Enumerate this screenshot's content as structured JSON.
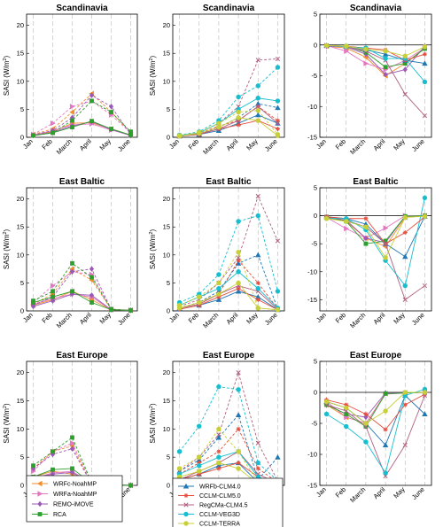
{
  "figure": {
    "months": [
      "Jan",
      "Feb",
      "March",
      "April",
      "May",
      "June"
    ],
    "y_label": "SASI (W/m",
    "y_label_sup": "2",
    "y_label_close": ")"
  },
  "legend_left": [
    {
      "name": "WRFc-NoahMP",
      "color": "#f28e2b",
      "marker": "triangle-left"
    },
    {
      "name": "WRFa-NoahMP",
      "color": "#e377c2",
      "marker": "triangle-right"
    },
    {
      "name": "REMO-iMOVE",
      "color": "#9b59b6",
      "marker": "diamond"
    },
    {
      "name": "RCA",
      "color": "#2ca02c",
      "marker": "square"
    }
  ],
  "legend_right": [
    {
      "name": "WRFb-CLM4.0",
      "color": "#1f77b4",
      "marker": "triangle-up"
    },
    {
      "name": "CCLM-CLM5.0",
      "color": "#e74c3c",
      "marker": "asterisk"
    },
    {
      "name": "RegCMa-CLM4.5",
      "color": "#b06080",
      "marker": "x"
    },
    {
      "name": "CCLM-VEG3D",
      "color": "#17becf",
      "marker": "circle"
    },
    {
      "name": "CCLM-TERRA",
      "color": "#c8d038",
      "marker": "circle"
    }
  ],
  "chart_data": [
    {
      "type": "line",
      "title": "Scandinavia",
      "ylabel": "SASI (W/m2)",
      "ylim": [
        0,
        22
      ],
      "yticks": [
        0,
        5,
        10,
        15,
        20
      ],
      "series": [
        {
          "name": "WRFc-NoahMP",
          "values": [
            0.5,
            1.5,
            4.5,
            7.8,
            4.5,
            0.8
          ],
          "dashed": [
            0.4,
            1.0,
            2.5,
            2.6,
            1.5,
            0.4
          ]
        },
        {
          "name": "WRFa-NoahMP",
          "values": [
            0.5,
            2.5,
            5.5,
            6.5,
            4.0,
            0.8
          ],
          "dashed": [
            0.4,
            1.2,
            2.2,
            2.4,
            1.3,
            0.4
          ]
        },
        {
          "name": "REMO-iMOVE",
          "values": [
            0.4,
            1.2,
            3.5,
            7.5,
            5.5,
            0.5
          ],
          "dashed": [
            0.3,
            0.9,
            2.0,
            2.8,
            1.4,
            0.3
          ]
        },
        {
          "name": "RCA",
          "values": [
            0.3,
            0.8,
            3.0,
            6.5,
            4.5,
            1.0
          ],
          "dashed": [
            0.3,
            0.8,
            1.8,
            2.9,
            1.5,
            0.4
          ]
        }
      ]
    },
    {
      "type": "line",
      "title": "Scandinavia",
      "ylabel": "SASI (W/m2)",
      "ylim": [
        0,
        22
      ],
      "yticks": [
        0,
        5,
        10,
        15,
        20
      ],
      "series": [
        {
          "name": "WRFb-CLM4.0",
          "values": [
            0.3,
            0.6,
            1.8,
            3.5,
            6.0,
            5.3
          ],
          "dashed": [
            0.2,
            0.5,
            1.2,
            2.5,
            4.0,
            2.5
          ]
        },
        {
          "name": "CCLM-CLM5.0",
          "values": [
            0.3,
            0.7,
            2.0,
            3.0,
            5.5,
            3.0
          ],
          "dashed": [
            0.2,
            0.5,
            1.5,
            2.2,
            3.0,
            1.5
          ]
        },
        {
          "name": "RegCMa-CLM4.5",
          "values": [
            0.3,
            0.8,
            2.5,
            5.5,
            13.8,
            14.0
          ],
          "dashed": [
            0.2,
            0.6,
            1.5,
            3.0,
            5.5,
            2.5
          ]
        },
        {
          "name": "CCLM-VEG3D",
          "values": [
            0.4,
            1.0,
            3.0,
            7.2,
            9.2,
            12.5
          ],
          "dashed": [
            0.3,
            0.8,
            2.5,
            5.0,
            7.0,
            6.5
          ]
        },
        {
          "name": "CCLM-TERRA",
          "values": [
            0.3,
            0.9,
            2.5,
            4.5,
            4.8,
            0.5
          ],
          "dashed": [
            0.2,
            0.7,
            1.8,
            3.5,
            3.0,
            0.3
          ]
        }
      ]
    },
    {
      "type": "line",
      "title": "Scandinavia",
      "ylim": [
        -15,
        5
      ],
      "yticks": [
        -15,
        -10,
        -5,
        0,
        5
      ],
      "series": [
        {
          "name": "WRFc-NoahMP",
          "values": [
            -0.2,
            -0.5,
            -2.0,
            -5.0,
            -3.0,
            -0.5
          ]
        },
        {
          "name": "WRFa-NoahMP",
          "values": [
            -0.1,
            -1.0,
            -3.0,
            -4.0,
            -2.5,
            -0.5
          ]
        },
        {
          "name": "REMO-iMOVE",
          "values": [
            -0.2,
            -0.3,
            -1.5,
            -4.8,
            -4.0,
            -0.2
          ]
        },
        {
          "name": "RCA",
          "values": [
            -0.1,
            -0.2,
            -1.2,
            -3.6,
            -3.0,
            -0.6
          ]
        },
        {
          "name": "WRFb-CLM4.0",
          "values": [
            -0.1,
            -0.2,
            -0.8,
            -1.5,
            -2.5,
            -3.0
          ]
        },
        {
          "name": "CCLM-CLM5.0",
          "values": [
            -0.1,
            -0.2,
            -0.5,
            -0.8,
            -2.5,
            -1.5
          ]
        },
        {
          "name": "RegCMa-CLM4.5",
          "values": [
            -0.1,
            -0.3,
            -1.0,
            -2.5,
            -8.0,
            -11.5
          ]
        },
        {
          "name": "CCLM-VEG3D",
          "values": [
            -0.1,
            -0.3,
            -0.5,
            -2.2,
            -2.2,
            -6.0
          ]
        },
        {
          "name": "CCLM-TERRA",
          "values": [
            -0.1,
            -0.2,
            -0.7,
            -1.0,
            -1.8,
            -0.3
          ]
        }
      ]
    },
    {
      "type": "line",
      "title": "East Baltic",
      "ylabel": "SASI (W/m2)",
      "ylim": [
        0,
        22
      ],
      "yticks": [
        0,
        5,
        10,
        15,
        20
      ],
      "series": [
        {
          "name": "WRFc-NoahMP",
          "values": [
            1.2,
            3.0,
            7.5,
            5.5,
            0.3,
            0.1
          ],
          "dashed": [
            1.0,
            2.0,
            3.5,
            2.0,
            0.2,
            0.1
          ]
        },
        {
          "name": "WRFa-NoahMP",
          "values": [
            1.5,
            4.5,
            7.0,
            6.5,
            0.2,
            0.1
          ],
          "dashed": [
            1.2,
            2.2,
            3.0,
            2.5,
            0.2,
            0.1
          ]
        },
        {
          "name": "REMO-iMOVE",
          "values": [
            1.0,
            2.5,
            7.0,
            7.5,
            0.3,
            0.1
          ],
          "dashed": [
            0.8,
            1.8,
            3.0,
            2.8,
            0.2,
            0.1
          ]
        },
        {
          "name": "RCA",
          "values": [
            1.8,
            3.5,
            8.5,
            6.0,
            0.3,
            0.1
          ],
          "dashed": [
            1.5,
            2.5,
            3.5,
            1.5,
            0.2,
            0.1
          ]
        }
      ]
    },
    {
      "type": "line",
      "title": "East Baltic",
      "ylabel": "SASI (W/m2)",
      "ylim": [
        0,
        22
      ],
      "yticks": [
        0,
        5,
        10,
        15,
        20
      ],
      "series": [
        {
          "name": "WRFb-CLM4.0",
          "values": [
            0.5,
            1.5,
            3.5,
            8.5,
            10.0,
            0.3
          ],
          "dashed": [
            0.3,
            1.0,
            2.0,
            3.5,
            2.5,
            0.2
          ]
        },
        {
          "name": "CCLM-CLM5.0",
          "values": [
            0.5,
            1.5,
            3.0,
            9.0,
            5.0,
            0.4
          ],
          "dashed": [
            0.3,
            1.0,
            2.5,
            4.0,
            2.0,
            0.2
          ]
        },
        {
          "name": "RegCMa-CLM4.5",
          "values": [
            0.8,
            2.0,
            5.0,
            9.5,
            20.5,
            12.5
          ],
          "dashed": [
            0.5,
            1.2,
            3.0,
            4.5,
            3.5,
            0.3
          ]
        },
        {
          "name": "CCLM-VEG3D",
          "values": [
            1.5,
            3.0,
            6.5,
            16.0,
            17.0,
            3.5
          ],
          "dashed": [
            1.0,
            2.5,
            4.0,
            7.0,
            4.0,
            0.5
          ]
        },
        {
          "name": "CCLM-TERRA",
          "values": [
            1.0,
            2.5,
            5.0,
            10.5,
            0.5,
            0.2
          ],
          "dashed": [
            0.5,
            1.5,
            3.0,
            5.0,
            0.5,
            0.2
          ]
        }
      ]
    },
    {
      "type": "line",
      "title": "East Baltic",
      "ylim": [
        -17,
        5
      ],
      "yticks": [
        -15,
        -10,
        -5,
        0,
        5
      ],
      "series": [
        {
          "name": "WRFc-NoahMP",
          "values": [
            -0.3,
            -1.0,
            -4.0,
            -5.5,
            -0.3,
            0.0
          ]
        },
        {
          "name": "WRFa-NoahMP",
          "values": [
            -0.3,
            -2.3,
            -4.0,
            -2.2,
            0.0,
            0.0
          ]
        },
        {
          "name": "REMO-iMOVE",
          "values": [
            -0.3,
            -0.8,
            -4.0,
            -4.8,
            -0.1,
            0.0
          ]
        },
        {
          "name": "RCA",
          "values": [
            -0.2,
            -1.0,
            -5.0,
            -4.5,
            -0.1,
            0.0
          ]
        },
        {
          "name": "WRFb-CLM4.0",
          "values": [
            -0.2,
            -0.5,
            -1.5,
            -5.0,
            -7.3,
            -0.1
          ]
        },
        {
          "name": "CCLM-CLM5.0",
          "values": [
            -0.2,
            -0.5,
            -0.5,
            -5.0,
            -3.0,
            -0.2
          ]
        },
        {
          "name": "RegCMa-CLM4.5",
          "values": [
            -0.3,
            -0.8,
            -2.0,
            -5.0,
            -15.0,
            -12.5
          ]
        },
        {
          "name": "CCLM-VEG3D",
          "values": [
            -0.5,
            -0.5,
            -2.5,
            -8.0,
            -12.5,
            3.2
          ]
        },
        {
          "name": "CCLM-TERRA",
          "values": [
            -0.5,
            -1.0,
            -2.0,
            -7.5,
            -0.3,
            -0.1
          ]
        }
      ]
    },
    {
      "type": "line",
      "title": "East Europe",
      "ylabel": "SASI (W/m2)",
      "ylim": [
        0,
        22
      ],
      "yticks": [
        0,
        5,
        10,
        15,
        20
      ],
      "series": [
        {
          "name": "WRFc-NoahMP",
          "values": [
            3.0,
            6.0,
            7.0,
            0.3,
            0.1,
            0.0
          ],
          "dashed": [
            1.5,
            2.5,
            2.0,
            0.2,
            0.1,
            0.0
          ]
        },
        {
          "name": "WRFa-NoahMP",
          "values": [
            2.5,
            6.0,
            7.5,
            0.5,
            0.1,
            0.0
          ],
          "dashed": [
            1.2,
            2.2,
            2.5,
            0.3,
            0.1,
            0.0
          ]
        },
        {
          "name": "REMO-iMOVE",
          "values": [
            3.0,
            5.5,
            6.5,
            0.2,
            0.1,
            0.0
          ],
          "dashed": [
            1.3,
            2.0,
            2.3,
            0.2,
            0.1,
            0.0
          ]
        },
        {
          "name": "RCA",
          "values": [
            3.5,
            6.0,
            8.5,
            0.5,
            0.1,
            0.0
          ],
          "dashed": [
            1.5,
            2.8,
            3.0,
            0.3,
            0.1,
            0.0
          ]
        }
      ]
    },
    {
      "type": "line",
      "title": "East Europe",
      "ylabel": "SASI (W/m2)",
      "ylim": [
        0,
        22
      ],
      "yticks": [
        0,
        5,
        10,
        15,
        20
      ],
      "series": [
        {
          "name": "WRFb-CLM4.0",
          "values": [
            2.5,
            4.5,
            8.5,
            12.5,
            1.0,
            5.0
          ],
          "dashed": [
            1.0,
            2.0,
            3.5,
            4.0,
            0.5,
            0.5
          ]
        },
        {
          "name": "CCLM-CLM5.0",
          "values": [
            2.0,
            4.0,
            6.0,
            10.0,
            3.0,
            0.5
          ],
          "dashed": [
            1.0,
            2.0,
            3.0,
            4.0,
            1.5,
            0.3
          ]
        },
        {
          "name": "RegCMa-CLM4.5",
          "values": [
            2.5,
            5.0,
            9.0,
            20.0,
            7.5,
            0.8
          ],
          "dashed": [
            1.0,
            2.5,
            4.0,
            6.0,
            2.0,
            0.3
          ]
        },
        {
          "name": "CCLM-VEG3D",
          "values": [
            6.0,
            10.5,
            17.5,
            17.0,
            4.0,
            0.8
          ],
          "dashed": [
            2.0,
            3.5,
            5.0,
            6.0,
            1.5,
            0.3
          ]
        },
        {
          "name": "CCLM-TERRA",
          "values": [
            3.0,
            5.0,
            10.0,
            6.0,
            0.5,
            0.2
          ],
          "dashed": [
            1.5,
            2.5,
            4.0,
            3.0,
            0.3,
            0.1
          ]
        }
      ]
    },
    {
      "type": "line",
      "title": "East Europe",
      "ylim": [
        -15,
        5
      ],
      "yticks": [
        -15,
        -10,
        -5,
        0,
        5
      ],
      "series": [
        {
          "name": "WRFc-NoahMP",
          "values": [
            -2.0,
            -4.0,
            -5.0,
            -0.2,
            -0.1,
            0.0
          ]
        },
        {
          "name": "WRFa-NoahMP",
          "values": [
            -1.5,
            -4.0,
            -5.0,
            -0.3,
            -0.1,
            0.0
          ]
        },
        {
          "name": "REMO-iMOVE",
          "values": [
            -2.0,
            -3.5,
            -4.0,
            -0.1,
            -0.1,
            0.0
          ]
        },
        {
          "name": "RCA",
          "values": [
            -2.0,
            -3.5,
            -5.5,
            -0.2,
            -0.1,
            0.0
          ]
        },
        {
          "name": "WRFb-CLM4.0",
          "values": [
            -1.5,
            -2.5,
            -5.0,
            -8.5,
            -0.5,
            -3.5
          ]
        },
        {
          "name": "CCLM-CLM5.0",
          "values": [
            -1.2,
            -2.0,
            -3.5,
            -6.0,
            -2.0,
            -0.3
          ]
        },
        {
          "name": "RegCMa-CLM4.5",
          "values": [
            -2.0,
            -3.0,
            -5.5,
            -13.5,
            -8.5,
            -0.5
          ]
        },
        {
          "name": "CCLM-VEG3D",
          "values": [
            -3.5,
            -5.5,
            -8.0,
            -13.0,
            -0.5,
            0.5
          ]
        },
        {
          "name": "CCLM-TERRA",
          "values": [
            -1.5,
            -2.5,
            -5.0,
            -3.0,
            0.0,
            0.0
          ]
        }
      ]
    }
  ]
}
